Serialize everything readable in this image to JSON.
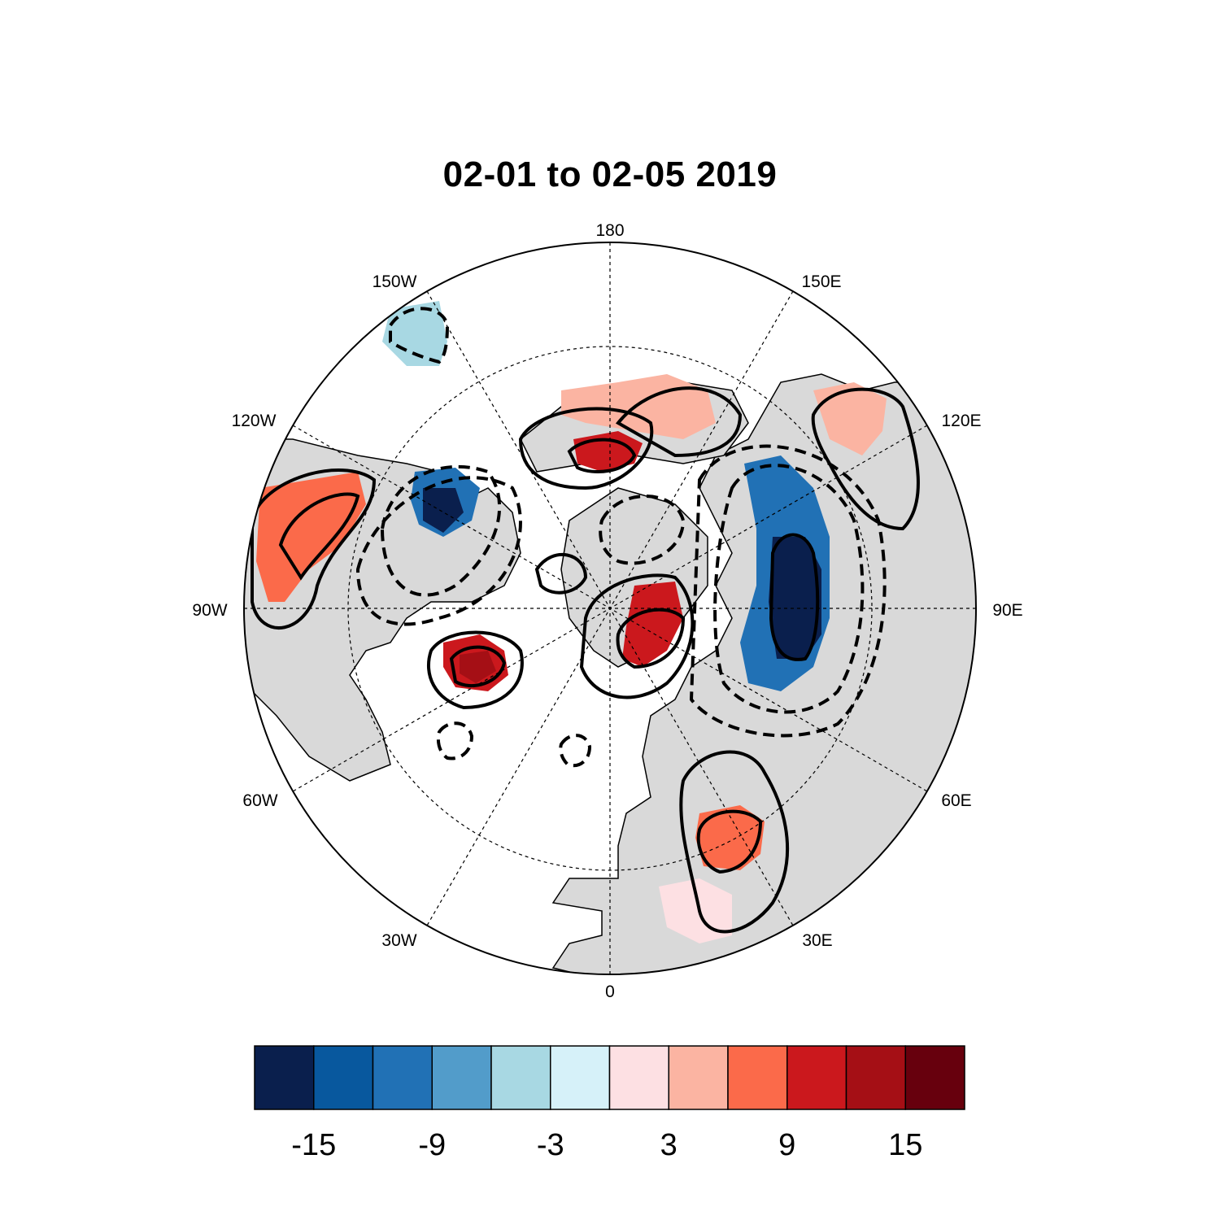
{
  "title": "02-01 to 02-05 2019",
  "longitude_labels": {
    "n180": "180",
    "w150": "150W",
    "e150": "150E",
    "w120": "120W",
    "e120": "120E",
    "w90": "90W",
    "e90": "90E",
    "w60": "60W",
    "e60": "60E",
    "w30": "30W",
    "e30": "30E",
    "s0": "0"
  },
  "colorbar": {
    "colors": [
      "#0a1f4d",
      "#08589e",
      "#2171b5",
      "#529cca",
      "#a8d8e3",
      "#d6f1f9",
      "#fde0e3",
      "#fbb4a2",
      "#fb6a4a",
      "#cb181d",
      "#a50f15",
      "#67000d"
    ],
    "labels": [
      "-15",
      "-9",
      "-3",
      "3",
      "9",
      "15"
    ]
  },
  "colors": {
    "land": "#d9d9d9",
    "ocean": "#ffffff",
    "contour": "#000000"
  }
}
